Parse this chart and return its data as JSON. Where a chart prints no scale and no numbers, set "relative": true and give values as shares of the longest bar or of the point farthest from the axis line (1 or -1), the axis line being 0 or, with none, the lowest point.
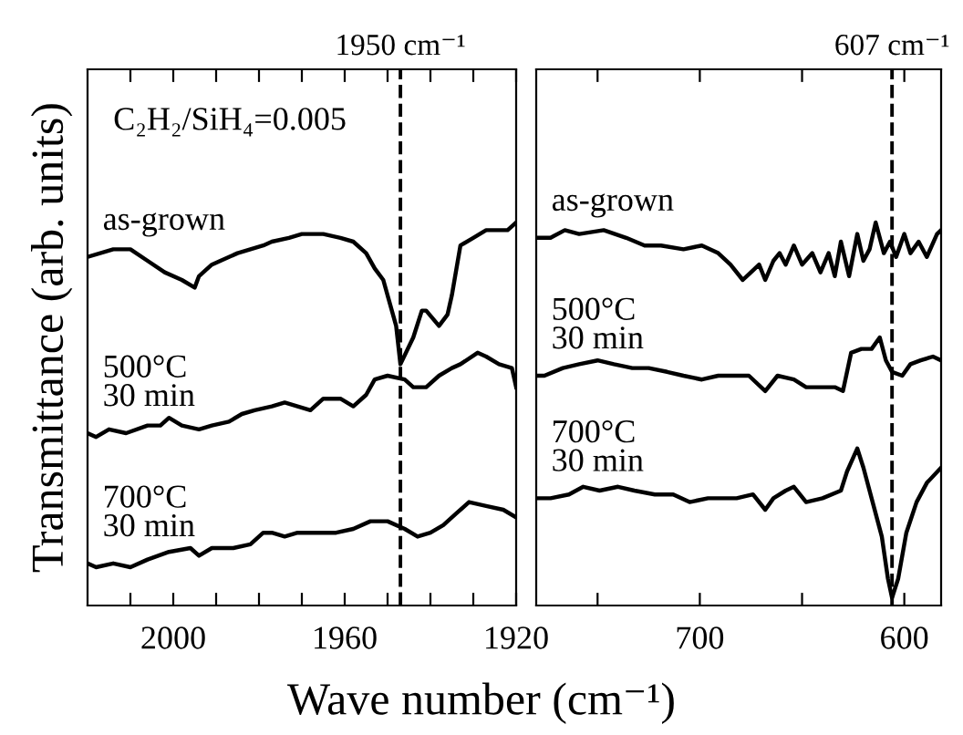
{
  "chart_data": [
    {
      "type": "line",
      "xlabel": "Wave number (cm⁻¹)",
      "ylabel": "Transmittance (arb. units)",
      "annotations": [
        "C₂H₂/SiH₄=0.005"
      ],
      "relative": true,
      "legend": false,
      "grid": false,
      "line_style": "solid",
      "marker": "none",
      "xlim": [
        2020,
        1920
      ],
      "xticks": [
        {
          "value": 2010,
          "label": null
        },
        2000,
        {
          "value": 1990,
          "label": null
        },
        {
          "value": 1980,
          "label": null
        },
        {
          "value": 1970,
          "label": null
        },
        1960,
        {
          "value": 1950,
          "label": null
        },
        {
          "value": 1940,
          "label": null
        },
        {
          "value": 1930,
          "label": null
        },
        1920
      ],
      "ref_lines": [
        {
          "axis": "x",
          "value": 1947,
          "label": "1950 cm⁻¹",
          "line_style": "dashed",
          "color": "#000000"
        }
      ],
      "series": [
        {
          "name": "as-grown",
          "color": "#000000",
          "x": [
            2020,
            2014,
            2010,
            2006,
            2002,
            1998,
            1995,
            1994,
            1991,
            1989,
            1985,
            1982,
            1979,
            1977,
            1973,
            1970,
            1965,
            1961,
            1958,
            1955,
            1953,
            1951,
            1950,
            1948,
            1947,
            1944,
            1942,
            1941,
            1938,
            1936,
            1935,
            1933,
            1930,
            1927,
            1925,
            1922,
            1920
          ],
          "values": [
            0.91,
            0.93,
            0.93,
            0.9,
            0.87,
            0.85,
            0.83,
            0.86,
            0.89,
            0.9,
            0.92,
            0.93,
            0.94,
            0.95,
            0.96,
            0.97,
            0.97,
            0.96,
            0.95,
            0.92,
            0.88,
            0.85,
            0.81,
            0.73,
            0.63,
            0.7,
            0.77,
            0.77,
            0.73,
            0.76,
            0.81,
            0.94,
            0.96,
            0.98,
            0.98,
            0.98,
            1.0
          ]
        },
        {
          "name": "500°C\n30 min",
          "color": "#000000",
          "x": [
            2020,
            2018,
            2015,
            2011,
            2006,
            2003,
            2001,
            1998,
            1994,
            1991,
            1987,
            1984,
            1981,
            1977,
            1974,
            1971,
            1968,
            1965,
            1961,
            1958,
            1955,
            1953,
            1950,
            1946,
            1944,
            1941,
            1938,
            1935,
            1933,
            1929,
            1927,
            1924,
            1921,
            1920
          ],
          "values": [
            0.45,
            0.44,
            0.46,
            0.45,
            0.47,
            0.47,
            0.49,
            0.47,
            0.46,
            0.47,
            0.48,
            0.5,
            0.51,
            0.52,
            0.53,
            0.52,
            0.51,
            0.54,
            0.54,
            0.52,
            0.55,
            0.59,
            0.6,
            0.59,
            0.57,
            0.57,
            0.6,
            0.62,
            0.63,
            0.66,
            0.65,
            0.63,
            0.62,
            0.57
          ]
        },
        {
          "name": "700°C\n30 min",
          "color": "#000000",
          "x": [
            2020,
            2018,
            2014,
            2010,
            2006,
            2001,
            1996,
            1994,
            1991,
            1986,
            1982,
            1979,
            1977,
            1974,
            1971,
            1967,
            1962,
            1958,
            1954,
            1950,
            1946,
            1943,
            1940,
            1937,
            1934,
            1931,
            1927,
            1923,
            1920
          ],
          "values": [
            0.11,
            0.1,
            0.11,
            0.1,
            0.12,
            0.14,
            0.15,
            0.13,
            0.15,
            0.15,
            0.16,
            0.19,
            0.19,
            0.18,
            0.19,
            0.19,
            0.19,
            0.2,
            0.22,
            0.22,
            0.2,
            0.18,
            0.19,
            0.21,
            0.24,
            0.27,
            0.26,
            0.25,
            0.23
          ]
        }
      ]
    },
    {
      "type": "line",
      "relative": true,
      "legend": false,
      "grid": false,
      "line_style": "solid",
      "marker": "none",
      "xlim": [
        780,
        582
      ],
      "xticks": [
        {
          "value": 750,
          "label": null
        },
        700,
        {
          "value": 650,
          "label": null
        },
        600
      ],
      "ref_lines": [
        {
          "axis": "x",
          "value": 606,
          "label": "607 cm⁻¹",
          "line_style": "dashed",
          "color": "#000000"
        }
      ],
      "series": [
        {
          "name": "as-grown",
          "color": "#000000",
          "x": [
            780,
            773,
            766,
            759,
            747,
            736,
            727,
            719,
            708,
            699,
            691,
            685,
            679,
            675,
            671,
            668,
            664,
            661,
            658,
            654,
            650,
            645,
            641,
            637,
            634,
            631,
            627,
            623,
            620,
            617,
            614,
            610,
            607,
            604,
            600,
            597,
            593,
            589,
            584,
            582
          ],
          "values": [
            0.96,
            0.96,
            0.98,
            0.97,
            0.98,
            0.96,
            0.94,
            0.94,
            0.93,
            0.94,
            0.92,
            0.89,
            0.85,
            0.87,
            0.89,
            0.85,
            0.9,
            0.92,
            0.89,
            0.94,
            0.89,
            0.92,
            0.87,
            0.92,
            0.86,
            0.95,
            0.86,
            0.97,
            0.9,
            0.93,
            1.0,
            0.92,
            0.95,
            0.91,
            0.97,
            0.92,
            0.95,
            0.91,
            0.97,
            0.98
          ]
        },
        {
          "name": "500°C\n30 min",
          "color": "#000000",
          "x": [
            780,
            776,
            767,
            759,
            750,
            742,
            733,
            725,
            716,
            708,
            699,
            691,
            685,
            676,
            668,
            662,
            654,
            648,
            640,
            634,
            630,
            626,
            621,
            616,
            612,
            609,
            606,
            601,
            597,
            592,
            586,
            582
          ],
          "values": [
            0.6,
            0.6,
            0.62,
            0.63,
            0.64,
            0.63,
            0.62,
            0.62,
            0.61,
            0.6,
            0.59,
            0.6,
            0.6,
            0.6,
            0.56,
            0.6,
            0.59,
            0.57,
            0.57,
            0.57,
            0.56,
            0.66,
            0.67,
            0.67,
            0.7,
            0.64,
            0.61,
            0.6,
            0.63,
            0.64,
            0.65,
            0.64
          ]
        },
        {
          "name": "700°C\n30 min",
          "color": "#000000",
          "x": [
            780,
            773,
            764,
            757,
            749,
            740,
            732,
            722,
            713,
            705,
            696,
            688,
            682,
            674,
            668,
            664,
            658,
            654,
            648,
            640,
            631,
            628,
            623,
            620,
            616,
            611,
            608,
            606,
            603,
            599,
            594,
            589,
            582
          ],
          "values": [
            0.28,
            0.28,
            0.29,
            0.31,
            0.3,
            0.31,
            0.3,
            0.29,
            0.29,
            0.27,
            0.28,
            0.28,
            0.28,
            0.29,
            0.25,
            0.28,
            0.3,
            0.31,
            0.27,
            0.28,
            0.3,
            0.35,
            0.41,
            0.36,
            0.28,
            0.18,
            0.07,
            0.02,
            0.07,
            0.19,
            0.27,
            0.32,
            0.36
          ]
        }
      ]
    }
  ]
}
